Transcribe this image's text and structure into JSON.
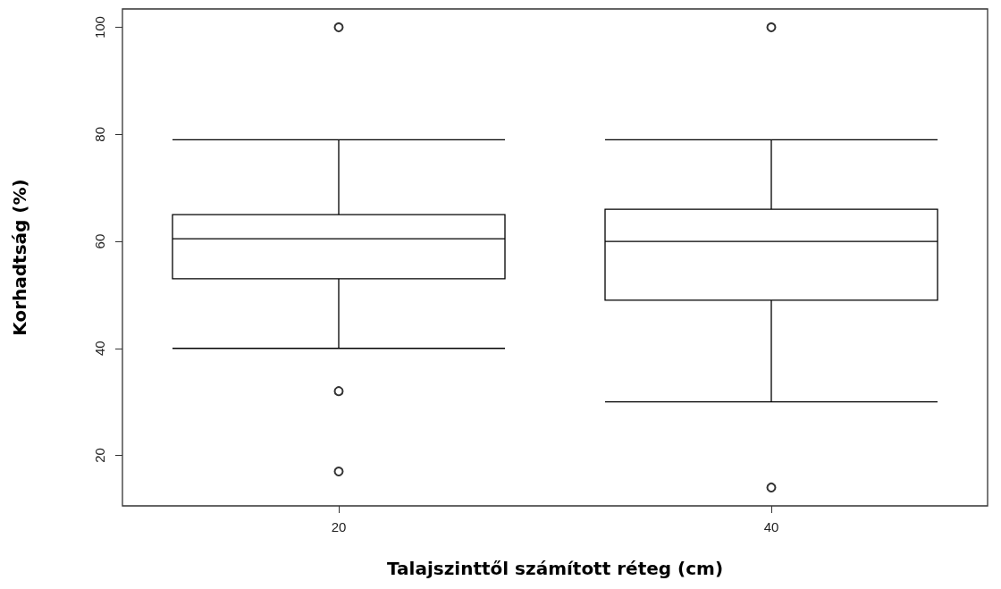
{
  "chart_data": {
    "type": "box",
    "xlabel": "Talajszinttől számított réteg (cm)",
    "ylabel": "Korhadtság (%)",
    "categories": [
      "20",
      "40"
    ],
    "boxes": [
      {
        "low": 40,
        "q1": 53,
        "median": 60.5,
        "q3": 65,
        "high": 79,
        "outliers": [
          100,
          32,
          17
        ]
      },
      {
        "low": 30,
        "q1": 49,
        "median": 60,
        "q3": 66,
        "high": 79,
        "outliers": [
          100,
          14
        ]
      }
    ],
    "color": "#000000",
    "ylim": [
      10.56,
      103.44
    ],
    "yticks": [
      20,
      40,
      60,
      80,
      100
    ],
    "grid": false
  }
}
